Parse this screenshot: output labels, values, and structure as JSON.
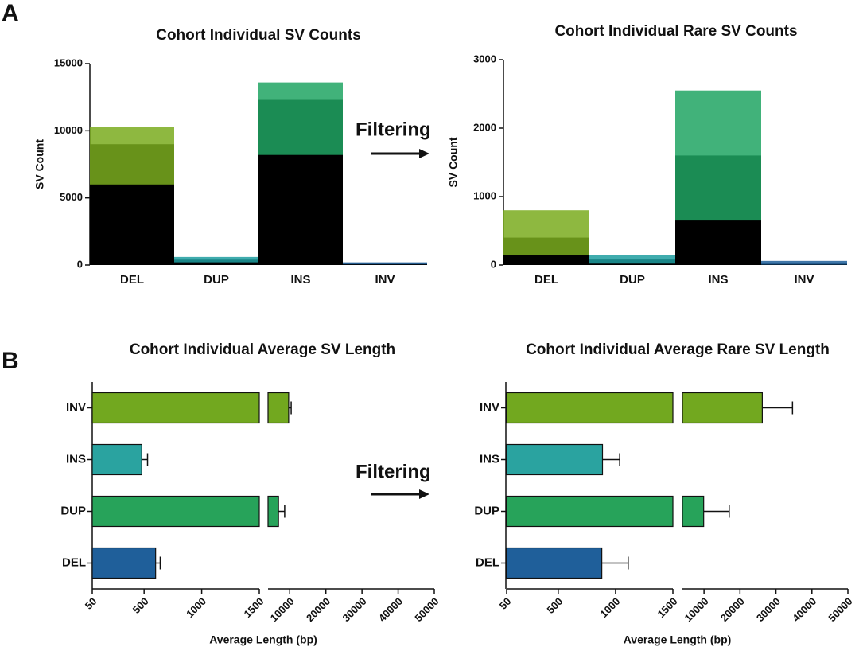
{
  "panels": [
    "A",
    "B"
  ],
  "annotations": [
    "Filtering",
    "Filtering"
  ],
  "chart_data": [
    {
      "type": "bar",
      "title": "Cohort Individual SV Counts",
      "ylabel": "SV Count",
      "categories": [
        "DEL",
        "DUP",
        "INS",
        "INV"
      ],
      "values": [
        9000,
        400,
        12300,
        100
      ],
      "ranges": [
        [
          6000,
          10300
        ],
        [
          200,
          600
        ],
        [
          8200,
          13600
        ],
        [
          50,
          200
        ]
      ],
      "colors": [
        "#7aab1e",
        "#1e9ea0",
        "#20a463",
        "#1f5f9a"
      ],
      "ylim": [
        0,
        15000
      ],
      "yticks": [
        0,
        5000,
        10000,
        15000
      ]
    },
    {
      "type": "bar",
      "title": "Cohort Individual Rare SV Counts",
      "ylabel": "SV Count",
      "categories": [
        "DEL",
        "DUP",
        "INS",
        "INV"
      ],
      "values": [
        400,
        80,
        1600,
        20
      ],
      "ranges": [
        [
          150,
          800
        ],
        [
          20,
          150
        ],
        [
          650,
          2550
        ],
        [
          5,
          60
        ]
      ],
      "colors": [
        "#7aab1e",
        "#1e9ea0",
        "#20a463",
        "#1f5f9a"
      ],
      "ylim": [
        0,
        3000
      ],
      "yticks": [
        0,
        1000,
        2000,
        3000
      ]
    },
    {
      "type": "hbar",
      "title": "Cohort Individual Average SV Length",
      "xlabel": "Average Length (bp)",
      "categories": [
        "DEL",
        "DUP",
        "INS",
        "INV"
      ],
      "values": [
        600,
        6900,
        480,
        9700
      ],
      "errors": [
        40,
        1700,
        50,
        700
      ],
      "colors": [
        "#1f5f9a",
        "#27a35a",
        "#2aa3a0",
        "#72a81f"
      ],
      "xlim": [
        [
          50,
          1500
        ],
        [
          4000,
          50000
        ]
      ],
      "xticks": [
        [
          50,
          500,
          1000,
          1500
        ],
        [
          10000,
          20000,
          30000,
          40000,
          50000
        ]
      ]
    },
    {
      "type": "hbar",
      "title": "Cohort Individual Average Rare SV Length",
      "xlabel": "Average Length (bp)",
      "categories": [
        "DEL",
        "DUP",
        "INS",
        "INV"
      ],
      "values": [
        880,
        9900,
        886,
        26200
      ],
      "errors": [
        230,
        7100,
        150,
        8400
      ],
      "colors": [
        "#1f5f9a",
        "#27a35a",
        "#2aa3a0",
        "#72a81f"
      ],
      "xlim": [
        [
          50,
          1500
        ],
        [
          4000,
          50000
        ]
      ],
      "xticks": [
        [
          50,
          500,
          1000,
          1500
        ],
        [
          10000,
          20000,
          30000,
          40000,
          50000
        ]
      ]
    }
  ]
}
